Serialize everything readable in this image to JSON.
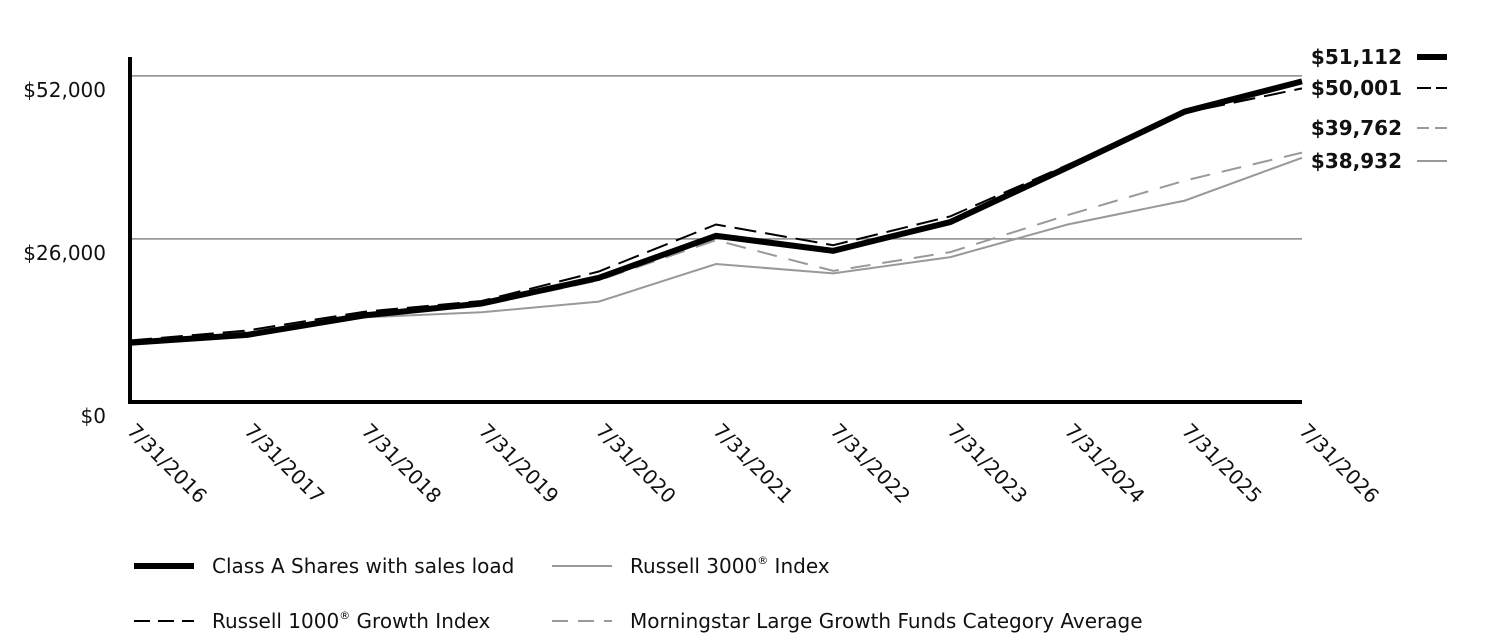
{
  "chart_data": {
    "type": "line",
    "title": "",
    "xlabel": "",
    "ylabel": "",
    "ylim": [
      0,
      55000
    ],
    "yticks": [
      {
        "value": 0,
        "label": "$0"
      },
      {
        "value": 26000,
        "label": "$26,000"
      },
      {
        "value": 52000,
        "label": "$52,000"
      }
    ],
    "grid_values": [
      26000,
      52000
    ],
    "x": [
      "7/31/2016",
      "7/31/2017",
      "7/31/2018",
      "7/31/2019",
      "7/31/2020",
      "7/31/2021",
      "7/31/2022",
      "7/31/2023",
      "7/31/2024",
      "7/31/2025",
      "7/31/2026"
    ],
    "legend_position": "bottom",
    "series": [
      {
        "name": "Class A Shares with sales load",
        "key": "classA",
        "end_label": "$51,112",
        "style": "solid-thick",
        "color": "#000000",
        "values": [
          9450,
          10700,
          13800,
          15700,
          19800,
          26500,
          24100,
          28700,
          37400,
          46300,
          51112
        ]
      },
      {
        "name": "Russell 1000 Growth Index",
        "name_prefix": "Russell 1000",
        "name_suffix": " Growth Index",
        "superscript": "®",
        "key": "r1000g",
        "end_label": "$50,001",
        "style": "dash-long",
        "color": "#000000",
        "values": [
          9800,
          11400,
          14400,
          16100,
          20800,
          28300,
          25000,
          29600,
          37800,
          46100,
          50001
        ]
      },
      {
        "name": "Morningstar Large Growth Funds Category Average",
        "key": "mstar",
        "end_label": "$39,762",
        "style": "dash-gray",
        "color": "#999999",
        "values": [
          9800,
          11200,
          13600,
          15400,
          19400,
          25800,
          20900,
          23900,
          29800,
          35300,
          39762
        ]
      },
      {
        "name": "Russell 3000 Index",
        "name_prefix": "Russell 3000",
        "name_suffix": " Index",
        "superscript": "®",
        "key": "r3000",
        "end_label": "$38,932",
        "style": "solid-gray",
        "color": "#999999",
        "values": [
          9700,
          11000,
          13500,
          14300,
          16000,
          22000,
          20500,
          23100,
          28300,
          32100,
          38932
        ]
      }
    ]
  }
}
